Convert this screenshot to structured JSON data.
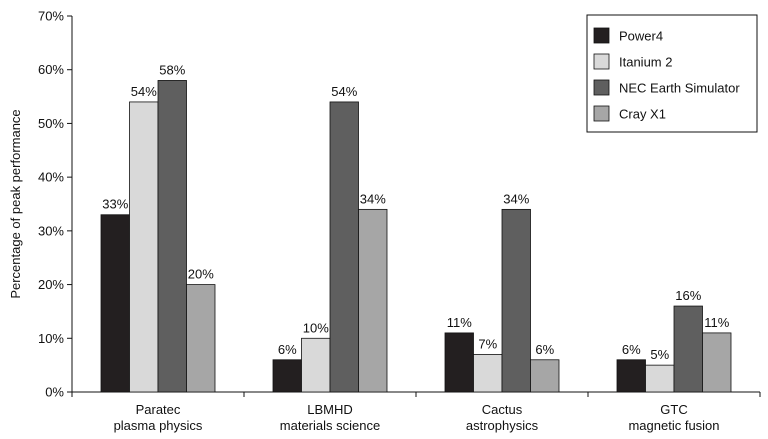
{
  "chart_data": {
    "type": "bar",
    "ylabel": "Percentage of peak performance",
    "xlabel": "",
    "ylim": [
      0,
      70
    ],
    "y_ticks": [
      {
        "value": 0,
        "label": "0%"
      },
      {
        "value": 10,
        "label": "10%"
      },
      {
        "value": 20,
        "label": "20%"
      },
      {
        "value": 30,
        "label": "30%"
      },
      {
        "value": 40,
        "label": "40%"
      },
      {
        "value": 50,
        "label": "50%"
      },
      {
        "value": 60,
        "label": "60%"
      },
      {
        "value": 70,
        "label": "70%"
      }
    ],
    "grid": false,
    "legend_position": "top-right",
    "categories": [
      {
        "line1": "Paratec",
        "line2": "plasma physics"
      },
      {
        "line1": "LBMHD",
        "line2": "materials science"
      },
      {
        "line1": "Cactus",
        "line2": "astrophysics"
      },
      {
        "line1": "GTC",
        "line2": "magnetic fusion"
      }
    ],
    "series": [
      {
        "name": "Power4",
        "color": "#231f20",
        "values": [
          33,
          6,
          11,
          6
        ],
        "labels": [
          "33%",
          "6%",
          "11%",
          "6%"
        ]
      },
      {
        "name": "Itanium 2",
        "color": "#d9d9d9",
        "values": [
          54,
          10,
          7,
          5
        ],
        "labels": [
          "54%",
          "10%",
          "7%",
          "5%"
        ]
      },
      {
        "name": "NEC Earth Simulator",
        "color": "#5f5f5f",
        "values": [
          58,
          54,
          34,
          16
        ],
        "labels": [
          "58%",
          "54%",
          "34%",
          "16%"
        ]
      },
      {
        "name": "Cray X1",
        "color": "#a6a6a6",
        "values": [
          20,
          34,
          6,
          11
        ],
        "labels": [
          "20%",
          "34%",
          "6%",
          "11%"
        ]
      }
    ]
  }
}
